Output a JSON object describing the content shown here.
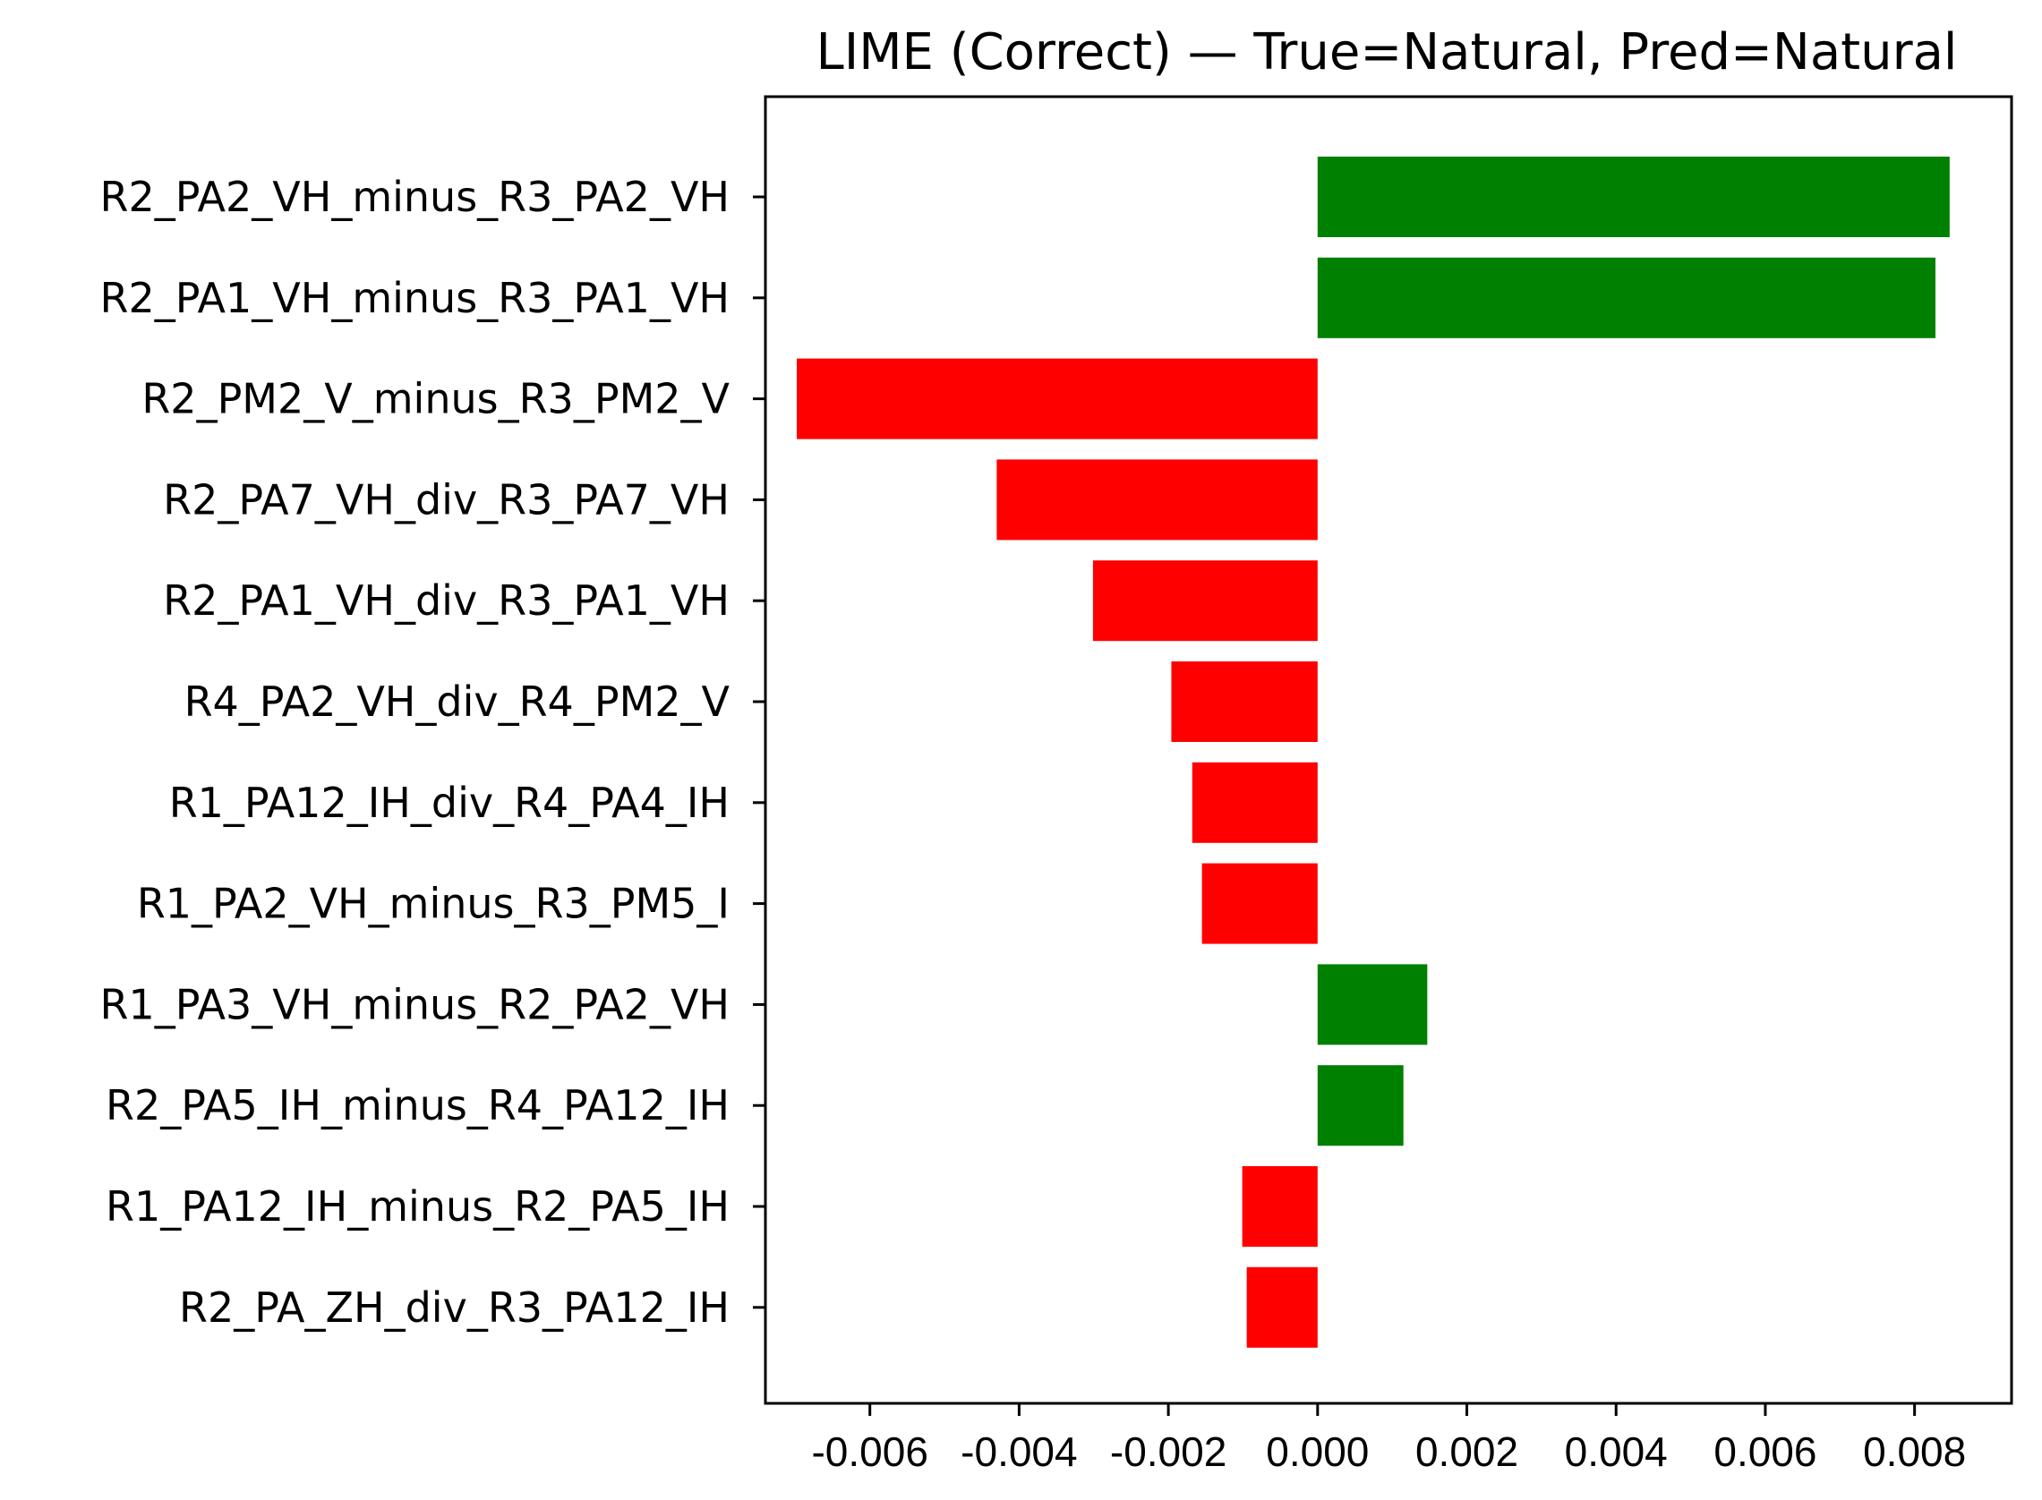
{
  "chart_data": {
    "type": "bar",
    "orientation": "horizontal",
    "title": "LIME (Correct) — True=Natural, Pred=Natural",
    "xlabel": "",
    "ylabel": "",
    "xlim": [
      -0.0074,
      0.0093
    ],
    "grid": false,
    "x_ticks": [
      "-0.006",
      "-0.004",
      "-0.002",
      "0.000",
      "0.002",
      "0.004",
      "0.006",
      "0.008"
    ],
    "bars": [
      {
        "label": "R2_PA2_VH_minus_R3_PA2_VH",
        "value": 0.00847
      },
      {
        "label": "R2_PA1_VH_minus_R3_PA1_VH",
        "value": 0.00828
      },
      {
        "label": "R2_PM2_V_minus_R3_PM2_V",
        "value": -0.00698
      },
      {
        "label": "R2_PA7_VH_div_R3_PA7_VH",
        "value": -0.0043
      },
      {
        "label": "R2_PA1_VH_div_R3_PA1_VH",
        "value": -0.00301
      },
      {
        "label": "R4_PA2_VH_div_R4_PM2_V",
        "value": -0.00196
      },
      {
        "label": "R1_PA12_IH_div_R4_PA4_IH",
        "value": -0.00168
      },
      {
        "label": "R1_PA2_VH_minus_R3_PM5_I",
        "value": -0.00155
      },
      {
        "label": "R1_PA3_VH_minus_R2_PA2_VH",
        "value": 0.00147
      },
      {
        "label": "R2_PA5_IH_minus_R4_PA12_IH",
        "value": 0.00115
      },
      {
        "label": "R1_PA12_IH_minus_R2_PA5_IH",
        "value": -0.00101
      },
      {
        "label": "R2_PA_ZH_div_R3_PA12_IH",
        "value": -0.00095
      }
    ],
    "colors": {
      "positive": "#008000",
      "negative": "#ff0000"
    }
  }
}
